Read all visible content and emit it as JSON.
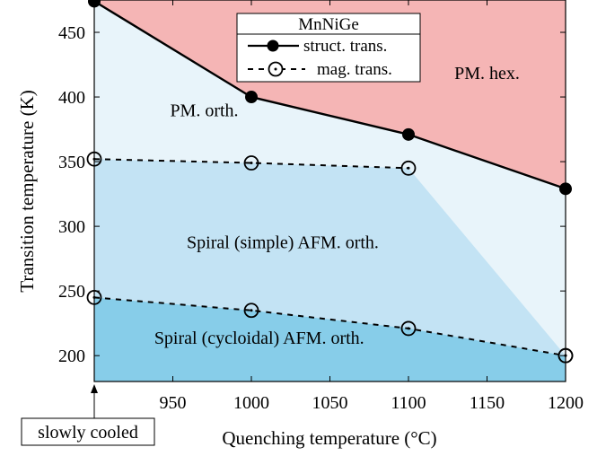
{
  "chart_data": {
    "type": "line",
    "title": "",
    "xlabel": "Quenching temperature (°C)",
    "ylabel": "Transition temperature (K)",
    "xlim": [
      900,
      1200
    ],
    "ylim": [
      180,
      475
    ],
    "x_ticks": [
      950,
      1000,
      1050,
      1100,
      1150,
      1200
    ],
    "y_ticks": [
      200,
      250,
      300,
      350,
      400,
      450
    ],
    "x_tick_labels": [
      "950",
      "1000",
      "1050",
      "1100",
      "1150",
      "1200"
    ],
    "y_tick_labels": [
      "200",
      "250",
      "300",
      "350",
      "400",
      "450"
    ],
    "grid": false,
    "legend": {
      "title": "MnNiGe",
      "position": "top-center",
      "entries": [
        "struct. trans.",
        "mag. trans."
      ]
    },
    "series": [
      {
        "name": "struct. trans.",
        "style": "solid",
        "marker": "filled-circle",
        "points": [
          [
            900,
            474
          ],
          [
            1000,
            400
          ],
          [
            1100,
            371
          ],
          [
            1200,
            329
          ]
        ]
      },
      {
        "name": "mag. trans.",
        "style": "dashed",
        "marker": "open-circle-dot",
        "points": [
          [
            900,
            352
          ],
          [
            1000,
            349
          ],
          [
            1100,
            345
          ],
          [
            1200,
            200
          ]
        ]
      },
      {
        "name": "",
        "style": "dashed",
        "marker": "open-circle-dot",
        "points": [
          [
            900,
            245
          ],
          [
            1000,
            235
          ],
          [
            1100,
            221
          ],
          [
            1200,
            200
          ]
        ]
      }
    ],
    "regions": [
      {
        "label": "PM. hex.",
        "color": "#f5b5b5",
        "anchor": [
          1150,
          414
        ]
      },
      {
        "label": "PM. orth.",
        "color": "#e8f4fa",
        "anchor": [
          970,
          385
        ]
      },
      {
        "label": "Spiral (simple) AFM. orth.",
        "color": "#c3e3f4",
        "anchor": [
          1020,
          283
        ]
      },
      {
        "label": "Spiral (cycloidal) AFM. orth.",
        "color": "#87cde9",
        "anchor": [
          1005,
          209
        ]
      }
    ],
    "annotation": {
      "text": "slowly cooled",
      "x": 900
    }
  }
}
